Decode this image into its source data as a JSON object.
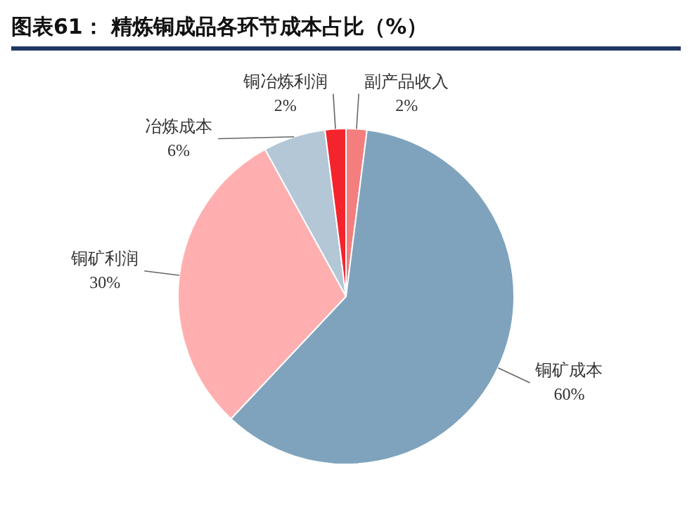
{
  "chart_data": {
    "type": "pie",
    "title": "图表61：  精炼铜成品各环节成本占比（%）",
    "categories": [
      "副产品收入",
      "铜矿成本",
      "铜矿利润",
      "冶炼成本",
      "铜冶炼利润"
    ],
    "values": [
      2,
      60,
      30,
      6,
      2
    ],
    "colors": [
      "#f47e7e",
      "#7fa3bd",
      "#ffafaf",
      "#b3c7d6",
      "#f4242c"
    ],
    "value_labels": [
      "2%",
      "60%",
      "30%",
      "6%",
      "2%"
    ]
  }
}
